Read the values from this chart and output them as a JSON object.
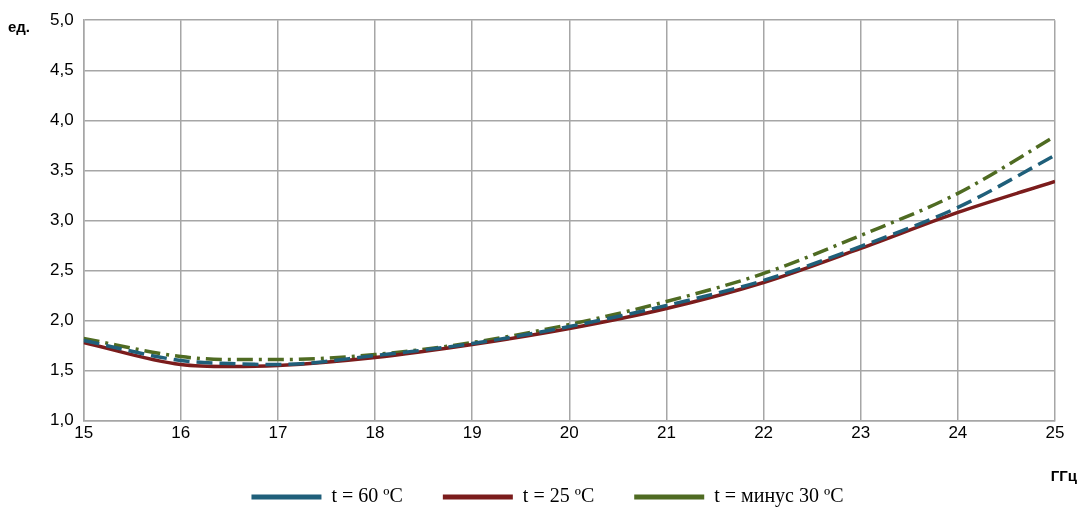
{
  "chart_data": {
    "type": "line",
    "xlabel": "ГГц",
    "ylabel": "ед.",
    "x": [
      15,
      16,
      16.5,
      17,
      18,
      19,
      20,
      21,
      22,
      23,
      24,
      25
    ],
    "series": [
      {
        "name": "t = 60 ºC",
        "color": "#1f5f7a",
        "line_style": "dashed",
        "values": [
          1.8,
          1.6,
          1.57,
          1.56,
          1.65,
          1.77,
          1.94,
          2.15,
          2.4,
          2.74,
          3.13,
          3.65
        ]
      },
      {
        "name": "t = 25 ºC",
        "color": "#7b1c1c",
        "line_style": "solid",
        "values": [
          1.78,
          1.56,
          1.54,
          1.55,
          1.63,
          1.76,
          1.92,
          2.12,
          2.38,
          2.72,
          3.08,
          3.39
        ]
      },
      {
        "name": "t = минус 30 ºC",
        "color": "#4f6b22",
        "line_style": "dashdot",
        "values": [
          1.82,
          1.64,
          1.61,
          1.61,
          1.66,
          1.78,
          1.96,
          2.19,
          2.47,
          2.85,
          3.27,
          3.84
        ]
      }
    ],
    "xlim": [
      15,
      25
    ],
    "xticks": [
      15,
      16,
      17,
      18,
      19,
      20,
      21,
      22,
      23,
      24,
      25
    ],
    "ylim": [
      1,
      5
    ],
    "yticks": [
      {
        "value": 1,
        "label": "1,0"
      },
      {
        "value": 1.5,
        "label": "1,5"
      },
      {
        "value": 2,
        "label": "2,0"
      },
      {
        "value": 2.5,
        "label": "2,5"
      },
      {
        "value": 3,
        "label": "3,0"
      },
      {
        "value": 3.5,
        "label": "3,5"
      },
      {
        "value": 4,
        "label": "4,0"
      },
      {
        "value": 4.5,
        "label": "4,5"
      },
      {
        "value": 5,
        "label": "5,0"
      }
    ],
    "grid": true,
    "legend": "bottom",
    "marker": "none"
  }
}
